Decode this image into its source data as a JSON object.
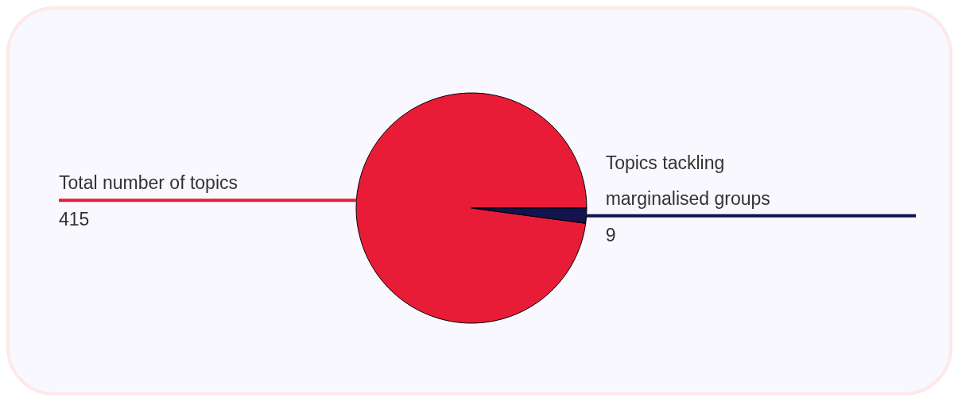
{
  "chart_data": {
    "type": "pie",
    "categories": [
      "Total number of topics",
      "Topics tackling marginalised groups"
    ],
    "values": [
      415,
      9
    ],
    "colors": [
      "#e81c37",
      "#13134f"
    ],
    "data_labels": true
  }
}
